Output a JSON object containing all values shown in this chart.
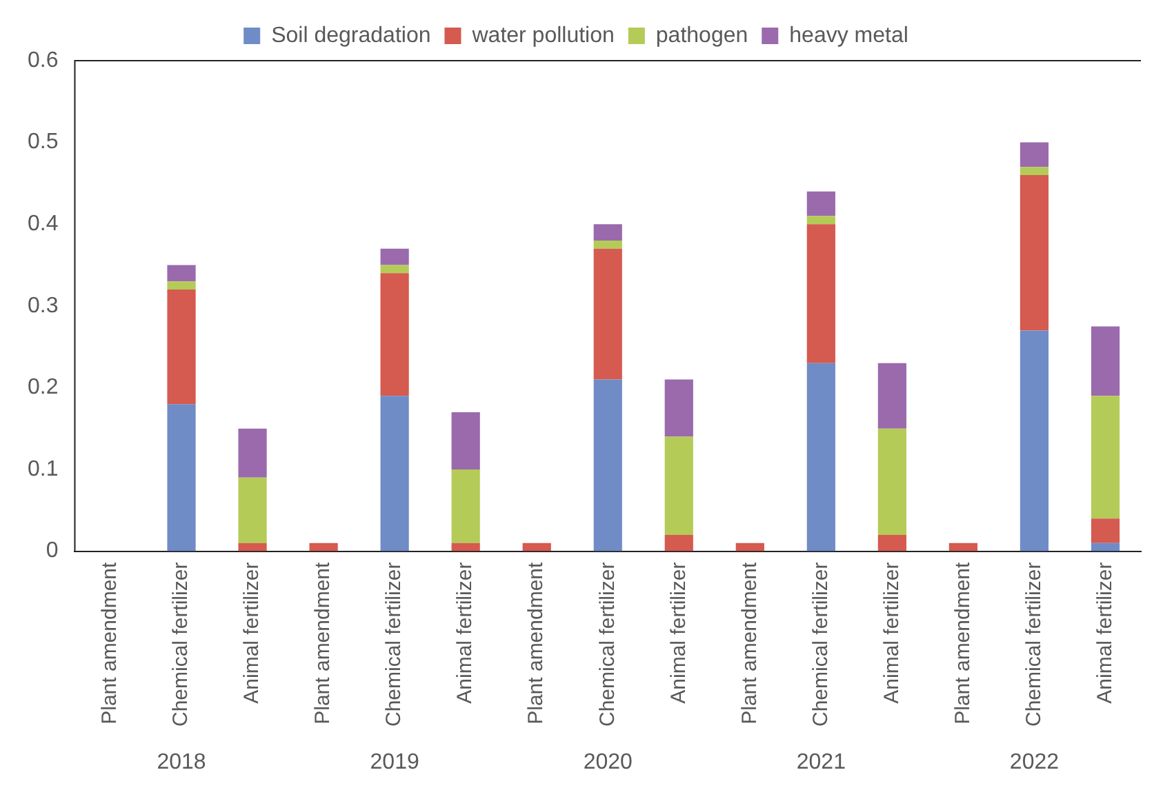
{
  "chart_data": {
    "type": "bar",
    "stacked": true,
    "categories": [
      "Plant amendment",
      "Chemical fertilizer",
      "Animal fertilizer",
      "Plant amendment",
      "Chemical fertilizer",
      "Animal fertilizer",
      "Plant amendment",
      "Chemical fertilizer",
      "Animal fertilizer",
      "Plant amendment",
      "Chemical fertilizer",
      "Animal fertilizer",
      "Plant amendment",
      "Chemical fertilizer",
      "Animal fertilizer"
    ],
    "series": [
      {
        "name": "Soil degradation",
        "color": "#6f8cc6",
        "values": [
          0,
          0.18,
          0,
          0,
          0.19,
          0,
          0,
          0.21,
          0,
          0,
          0.23,
          0,
          0,
          0.27,
          0.01
        ]
      },
      {
        "name": "water pollution",
        "color": "#d55a4f",
        "values": [
          0,
          0.14,
          0.01,
          0.01,
          0.15,
          0.01,
          0.01,
          0.16,
          0.02,
          0.01,
          0.17,
          0.02,
          0.01,
          0.19,
          0.03
        ]
      },
      {
        "name": "pathogen",
        "color": "#b4cb57",
        "values": [
          0,
          0.01,
          0.08,
          0,
          0.01,
          0.09,
          0,
          0.01,
          0.12,
          0,
          0.01,
          0.13,
          0,
          0.01,
          0.15
        ]
      },
      {
        "name": "heavy metal",
        "color": "#9a6aad",
        "values": [
          0,
          0.02,
          0.06,
          0,
          0.02,
          0.07,
          0,
          0.02,
          0.07,
          0,
          0.03,
          0.08,
          0,
          0.03,
          0.085
        ]
      }
    ],
    "ylim": [
      0,
      0.6
    ],
    "yticks": [
      0,
      0.1,
      0.2,
      0.3,
      0.4,
      0.5,
      0.6
    ],
    "grid": false,
    "legend": "top",
    "annotations": [
      "2018",
      "2019",
      "2020",
      "2021",
      "2022"
    ]
  }
}
